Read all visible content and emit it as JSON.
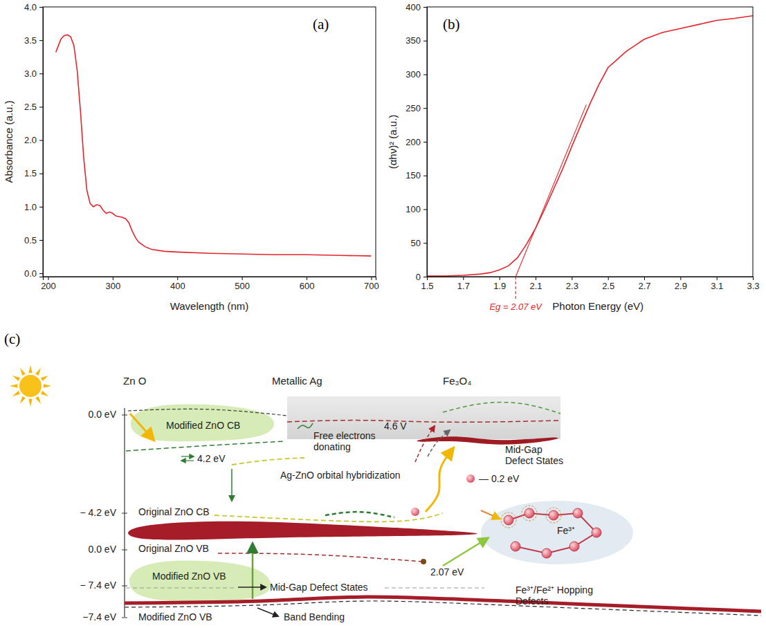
{
  "chart_data": [
    {
      "type": "line",
      "panel_label": "(a)",
      "x_label": "Wavelength (nm)",
      "y_label": "Absorbance (a.u.)",
      "xlim": [
        192,
        707
      ],
      "ylim": [
        -0.05,
        4.0
      ],
      "xticks": [
        200,
        300,
        400,
        500,
        600,
        700
      ],
      "yticks": [
        {
          "value": 0,
          "label": "0.0"
        },
        0.5,
        {
          "value": 1,
          "label": "1.0"
        },
        1.5,
        {
          "value": 2,
          "label": "2.0"
        },
        2.5,
        {
          "value": 3,
          "label": "3.0"
        },
        3.5,
        {
          "value": 4,
          "label": "4.0"
        }
      ],
      "grid": false,
      "series": [
        {
          "color": "#e3242b",
          "line_style": "solid",
          "x": [
            212,
            216,
            220,
            225,
            230,
            235,
            240,
            245,
            250,
            255,
            260,
            265,
            270,
            275,
            280,
            285,
            290,
            295,
            300,
            305,
            310,
            315,
            320,
            325,
            330,
            335,
            340,
            350,
            360,
            380,
            400,
            450,
            500,
            550,
            600,
            650,
            700
          ],
          "values": [
            3.32,
            3.42,
            3.52,
            3.57,
            3.58,
            3.55,
            3.42,
            3.05,
            2.45,
            1.75,
            1.25,
            1.05,
            1.0,
            1.03,
            1.02,
            0.95,
            0.9,
            0.92,
            0.9,
            0.86,
            0.85,
            0.84,
            0.82,
            0.76,
            0.64,
            0.54,
            0.47,
            0.4,
            0.36,
            0.33,
            0.32,
            0.3,
            0.29,
            0.28,
            0.28,
            0.27,
            0.26
          ]
        }
      ]
    },
    {
      "type": "line",
      "panel_label": "(b)",
      "x_label": "Photon Energy (eV)",
      "y_label": "(αhν)² (a.u.)",
      "xlim": [
        1.5,
        3.3
      ],
      "ylim": [
        0,
        400
      ],
      "xticks": [
        1.5,
        1.7,
        1.9,
        2.1,
        2.3,
        2.5,
        2.7,
        2.9,
        3.1,
        3.3
      ],
      "yticks": [
        0,
        50,
        100,
        150,
        200,
        250,
        300,
        350,
        400
      ],
      "grid": false,
      "series": [
        {
          "color": "#e3242b",
          "line_style": "solid",
          "x": [
            1.5,
            1.6,
            1.7,
            1.8,
            1.85,
            1.9,
            1.95,
            2.0,
            2.05,
            2.1,
            2.15,
            2.2,
            2.25,
            2.3,
            2.35,
            2.4,
            2.45,
            2.5,
            2.55,
            2.6,
            2.65,
            2.7,
            2.8,
            2.9,
            3.0,
            3.1,
            3.2,
            3.3
          ],
          "values": [
            1,
            1,
            2,
            4,
            6,
            10,
            16,
            28,
            48,
            72,
            100,
            130,
            160,
            193,
            225,
            256,
            285,
            310,
            322,
            334,
            343,
            352,
            362,
            368,
            374,
            380,
            383,
            387
          ]
        },
        {
          "color": "#e3242b",
          "line_style": "solid",
          "x": [
            1.99,
            2.38
          ],
          "values": [
            0,
            255
          ]
        }
      ],
      "annotations": [
        {
          "text": "Eg = 2.07 eV",
          "x": 1.99,
          "color": "#e3242b"
        }
      ]
    }
  ],
  "diagram": {
    "panel_label": "(c)",
    "headers": [
      "Zn O",
      "Metallic Ag",
      "Fe₃O₄"
    ],
    "energy_labels": [
      "0.0 eV",
      "− 4.2 eV",
      "0.0 eV",
      "− 7.4 eV",
      "−7.4 eV"
    ],
    "labels": [
      {
        "lines": [
          "4.6 V"
        ]
      },
      {
        "lines": [
          "Modified ZnO CB"
        ]
      },
      {
        "lines": [
          "Free electrons",
          "donating"
        ]
      },
      {
        "lines": [
          "Mid-Gap",
          "Defect States"
        ]
      },
      {
        "lines": [
          "4.2 eV"
        ]
      },
      {
        "lines": [
          "Ag-ZnO orbital hybridization"
        ]
      },
      {
        "lines": [
          "— 0.2 eV"
        ]
      },
      {
        "lines": [
          "Original ZnO CB"
        ]
      },
      {
        "lines": [
          "Original ZnO VB"
        ]
      },
      {
        "lines": [
          "2.07 eV"
        ]
      },
      {
        "lines": [
          "Mid-Gap Defect States"
        ]
      },
      {
        "lines": [
          "Modified ZnO VB"
        ]
      },
      {
        "lines": [
          "Fe³⁺/Fe²⁺ Hopping",
          "Defects"
        ]
      },
      {
        "lines": [
          "Fe³⁺"
        ]
      },
      {
        "lines": [
          "Modified ZnO VB"
        ]
      },
      {
        "lines": [
          "Band Bending"
        ]
      }
    ]
  }
}
